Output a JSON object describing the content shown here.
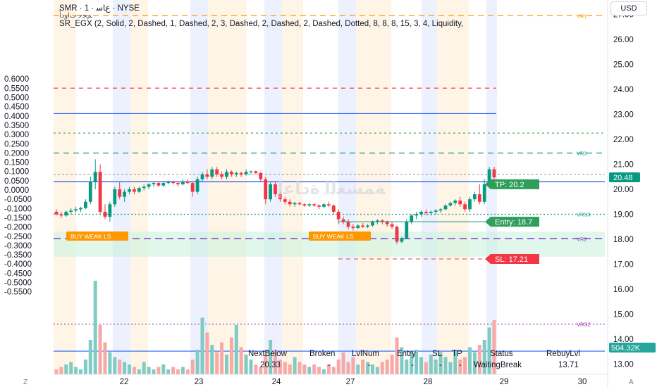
{
  "header": {
    "symbol_line": "SMR · 1 · ﻉﺎﺳ · NYSE",
    "sub_line": "ﻢﺠﺣ ﺕﺍﻭﺩﺃ",
    "indicator_line": "SR_EGX (2, Solid, 2, Dashed, 1, Dashed, 2, 3, Dashed, 2, Dashed, 2, Dashed, Dotted, 8, 8, 8, 15, 3, 4, Liquidity,"
  },
  "currency_button": "USD",
  "watermark": "ﺔﻤﺸﻐﻟﺍ ﺓﺩﺎﻋﺇ",
  "chart_data": {
    "type": "candlestick",
    "x_ticks": [
      "22",
      "23",
      "24",
      "27",
      "28",
      "29",
      "30"
    ],
    "left_axis": {
      "ticks": [
        0.6,
        0.55,
        0.5,
        0.45,
        0.4,
        0.35,
        0.3,
        0.25,
        0.2,
        0.15,
        0.1,
        0.05,
        0.0,
        -0.05,
        -0.1,
        -0.15,
        -0.2,
        -0.25,
        -0.3,
        -0.35,
        -0.4,
        -0.45,
        -0.5,
        -0.55
      ],
      "labels": [
        "0.6000",
        "0.5500",
        "0.5000",
        "0.4500",
        "0.4000",
        "0.3500",
        "0.3000",
        "0.2500",
        "0.2000",
        "0.1500",
        "0.1000",
        "0.0500",
        "0.0000",
        "-0.0500",
        "-0.1000",
        "-0.1500",
        "-0.2000",
        "-0.2500",
        "-0.3000",
        "-0.3500",
        "-0.4000",
        "-0.4500",
        "-0.5000",
        "-0.5500"
      ]
    },
    "right_axis": {
      "ticks": [
        27,
        26,
        25,
        24,
        23,
        22,
        21,
        20,
        19,
        18,
        17,
        16,
        15,
        14,
        13
      ],
      "labels": [
        "27.00",
        "26.00",
        "25.00",
        "24.00",
        "23.00",
        "22.00",
        "21.00",
        "20.00",
        "19.00",
        "18.00",
        "17.00",
        "16.00",
        "15.00",
        "14.00",
        "13.00"
      ],
      "ylim": [
        12.62,
        27.63
      ]
    },
    "last_price": "20.48",
    "volume_label": "504.32K",
    "candles": [
      [
        19.1,
        19.2,
        18.95,
        19.0
      ],
      [
        19.0,
        19.1,
        18.85,
        18.95
      ],
      [
        18.95,
        19.15,
        18.9,
        19.1
      ],
      [
        19.1,
        19.25,
        19.0,
        19.15
      ],
      [
        19.15,
        19.3,
        19.05,
        19.2
      ],
      [
        19.2,
        19.3,
        19.1,
        19.25
      ],
      [
        19.25,
        19.6,
        19.2,
        19.5
      ],
      [
        19.5,
        20.5,
        19.4,
        20.3
      ],
      [
        20.3,
        21.2,
        20.0,
        20.7
      ],
      [
        20.7,
        21.0,
        19.0,
        19.1
      ],
      [
        19.1,
        19.4,
        18.8,
        18.9
      ],
      [
        18.9,
        19.5,
        18.7,
        19.4
      ],
      [
        19.4,
        20.1,
        19.3,
        20.0
      ],
      [
        20.0,
        20.3,
        19.6,
        19.7
      ],
      [
        19.7,
        20.0,
        19.5,
        19.9
      ],
      [
        19.9,
        20.1,
        19.8,
        20.0
      ],
      [
        20.0,
        20.1,
        19.8,
        19.9
      ],
      [
        19.9,
        20.1,
        19.85,
        20.05
      ],
      [
        20.05,
        20.2,
        19.95,
        20.1
      ],
      [
        20.1,
        20.25,
        20.0,
        20.2
      ],
      [
        20.2,
        20.3,
        20.1,
        20.25
      ],
      [
        20.25,
        20.3,
        20.1,
        20.15
      ],
      [
        20.15,
        20.3,
        20.1,
        20.25
      ],
      [
        20.25,
        20.35,
        20.2,
        20.3
      ],
      [
        20.3,
        20.35,
        20.2,
        20.25
      ],
      [
        20.25,
        20.3,
        20.1,
        20.2
      ],
      [
        20.2,
        20.4,
        20.15,
        20.3
      ],
      [
        20.3,
        20.4,
        20.2,
        20.25
      ],
      [
        20.25,
        20.3,
        19.7,
        19.9
      ],
      [
        19.9,
        20.5,
        19.8,
        20.4
      ],
      [
        20.4,
        20.7,
        20.3,
        20.6
      ],
      [
        20.6,
        20.8,
        20.4,
        20.5
      ],
      [
        20.5,
        20.9,
        20.4,
        20.8
      ],
      [
        20.8,
        20.9,
        20.5,
        20.6
      ],
      [
        20.6,
        20.7,
        20.4,
        20.5
      ],
      [
        20.5,
        20.8,
        20.4,
        20.7
      ],
      [
        20.7,
        20.75,
        20.5,
        20.6
      ],
      [
        20.6,
        20.7,
        20.5,
        20.65
      ],
      [
        20.65,
        20.7,
        20.5,
        20.6
      ],
      [
        20.6,
        20.8,
        20.55,
        20.7
      ],
      [
        20.7,
        20.75,
        20.6,
        20.72
      ],
      [
        20.72,
        20.75,
        20.6,
        20.65
      ],
      [
        20.65,
        20.7,
        20.3,
        20.4
      ],
      [
        20.4,
        20.5,
        19.4,
        19.6
      ],
      [
        19.6,
        20.3,
        19.5,
        20.2
      ],
      [
        20.2,
        20.3,
        19.7,
        19.8
      ],
      [
        19.8,
        19.9,
        19.5,
        19.6
      ],
      [
        19.6,
        19.7,
        19.4,
        19.5
      ],
      [
        19.5,
        19.6,
        19.3,
        19.4
      ],
      [
        19.4,
        19.5,
        19.3,
        19.45
      ],
      [
        19.45,
        19.5,
        19.35,
        19.4
      ],
      [
        19.4,
        19.45,
        19.3,
        19.35
      ],
      [
        19.35,
        19.45,
        19.3,
        19.4
      ],
      [
        19.4,
        19.45,
        19.3,
        19.35
      ],
      [
        19.35,
        19.4,
        19.2,
        19.3
      ],
      [
        19.3,
        19.45,
        19.25,
        19.4
      ],
      [
        19.4,
        19.5,
        19.3,
        19.35
      ],
      [
        19.35,
        19.4,
        19.0,
        19.1
      ],
      [
        19.1,
        19.2,
        18.6,
        18.8
      ],
      [
        18.8,
        18.9,
        18.6,
        18.7
      ],
      [
        18.7,
        18.8,
        18.4,
        18.5
      ],
      [
        18.5,
        18.6,
        18.35,
        18.45
      ],
      [
        18.45,
        18.6,
        18.4,
        18.55
      ],
      [
        18.55,
        18.65,
        18.45,
        18.5
      ],
      [
        18.5,
        18.6,
        18.45,
        18.55
      ],
      [
        18.55,
        18.75,
        18.5,
        18.7
      ],
      [
        18.7,
        18.8,
        18.6,
        18.75
      ],
      [
        18.75,
        18.8,
        18.6,
        18.7
      ],
      [
        18.7,
        18.75,
        18.5,
        18.6
      ],
      [
        18.6,
        18.7,
        18.4,
        18.5
      ],
      [
        18.5,
        18.55,
        17.8,
        17.9
      ],
      [
        17.9,
        18.1,
        17.85,
        18.05
      ],
      [
        18.05,
        18.8,
        18.0,
        18.7
      ],
      [
        18.7,
        19.0,
        18.6,
        18.95
      ],
      [
        18.95,
        19.1,
        18.8,
        19.0
      ],
      [
        19.0,
        19.15,
        18.9,
        19.1
      ],
      [
        19.1,
        19.2,
        18.95,
        19.05
      ],
      [
        19.05,
        19.15,
        18.95,
        19.1
      ],
      [
        19.1,
        19.2,
        19.0,
        19.15
      ],
      [
        19.15,
        19.25,
        19.05,
        19.2
      ],
      [
        19.2,
        19.4,
        19.15,
        19.35
      ],
      [
        19.35,
        19.5,
        19.3,
        19.45
      ],
      [
        19.45,
        19.6,
        19.35,
        19.55
      ],
      [
        19.55,
        19.7,
        19.3,
        19.4
      ],
      [
        19.4,
        19.5,
        19.1,
        19.2
      ],
      [
        19.2,
        19.7,
        19.1,
        19.6
      ],
      [
        19.6,
        19.9,
        19.5,
        19.8
      ],
      [
        19.8,
        20.2,
        19.4,
        19.5
      ],
      [
        19.5,
        20.4,
        19.4,
        20.2
      ],
      [
        20.2,
        20.9,
        20.1,
        20.8
      ],
      [
        20.8,
        20.9,
        20.4,
        20.48
      ]
    ],
    "volumes": [
      2,
      3,
      4,
      5,
      3,
      2,
      6,
      14,
      38,
      20,
      13,
      9,
      7,
      6,
      5,
      4,
      3,
      2,
      5,
      3,
      2,
      3,
      4,
      2,
      3,
      2,
      3,
      2,
      6,
      10,
      23,
      17,
      12,
      9,
      13,
      8,
      15,
      20,
      11,
      8,
      6,
      4,
      3,
      8,
      14,
      10,
      6,
      5,
      4,
      7,
      5,
      4,
      3,
      4,
      3,
      2,
      4,
      3,
      6,
      9,
      5,
      7,
      4,
      6,
      5,
      4,
      3,
      5,
      6,
      8,
      15,
      11,
      6,
      9,
      10,
      7,
      5,
      8,
      6,
      9,
      7,
      5,
      10,
      6,
      7,
      11,
      9,
      12,
      14,
      19,
      22
    ],
    "levels": [
      {
        "label": "VR1",
        "value": 26.95,
        "color": "#ff9800",
        "dash": "8,6"
      },
      {
        "value": 24.05,
        "color": "#f23645",
        "dash": "6,6"
      },
      {
        "value": 23.03,
        "color": "#2962ff",
        "dash": ""
      },
      {
        "value": 22.25,
        "color": "#4caf50",
        "dash": "3,4"
      },
      {
        "label": "VR3",
        "value": 21.45,
        "color": "#089981",
        "dash": "8,6"
      },
      {
        "value": 20.6,
        "color": "#9e9e9e",
        "dash": "3,3"
      },
      {
        "value": 20.3,
        "color": "#1e53e5",
        "dash": ""
      },
      {
        "label": "VRS3",
        "value": 19.0,
        "color": "#089981",
        "dash": "2,3"
      },
      {
        "label": "VR2",
        "value": 18.02,
        "color": "#7b3fc5",
        "dash": "10,6"
      },
      {
        "label": "VRS2",
        "value": 14.6,
        "color": "#9c27b0",
        "dash": "2,3"
      },
      {
        "value": 13.52,
        "color": "#2962ff",
        "dash": ""
      }
    ],
    "trade_labels": {
      "tp": "TP: 20.2",
      "entry": "Entry: 18.7",
      "sl": "SL: 17.21"
    },
    "tp_value": 20.2,
    "entry_value": 18.7,
    "sl_value": 17.21,
    "signals": [
      {
        "text": "BUY WEAK LS",
        "at_candle": 6
      },
      {
        "text": "BUY WEAK LS",
        "at_candle": 59
      }
    ],
    "table": {
      "headers": [
        "NextBelow",
        "Broken",
        "LvlNum",
        "Entry",
        "SL",
        "TP",
        "Status",
        "RebuyLvl"
      ],
      "values": [
        "20.33",
        "-",
        "-",
        "-",
        "-",
        "-",
        "WaitingBreak",
        "13.71"
      ]
    },
    "colors": {
      "up": "#089981",
      "down": "#f23645",
      "up_vol": "#80cbc4",
      "down_vol": "#f7a9a7"
    }
  }
}
